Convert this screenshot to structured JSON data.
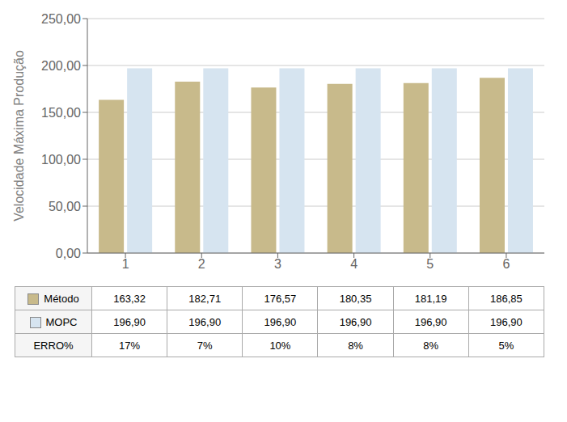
{
  "chart_data": {
    "type": "bar",
    "y_label": "Velocidade Máxima Produção",
    "categories": [
      "1",
      "2",
      "3",
      "4",
      "5",
      "6"
    ],
    "series": [
      {
        "name": "Método",
        "color": "#C8BA8B",
        "values": [
          163.32,
          182.71,
          176.57,
          180.35,
          181.19,
          186.85
        ],
        "value_labels": [
          "163,32",
          "182,71",
          "176,57",
          "180,35",
          "181,19",
          "186,85"
        ]
      },
      {
        "name": "MOPC",
        "color": "#D6E4F0",
        "values": [
          196.9,
          196.9,
          196.9,
          196.9,
          196.9,
          196.9
        ],
        "value_labels": [
          "196,90",
          "196,90",
          "196,90",
          "196,90",
          "196,90",
          "196,90"
        ]
      }
    ],
    "table_rows": [
      {
        "name": "ERRO%",
        "values": [
          17,
          7,
          10,
          8,
          8,
          5
        ],
        "value_labels": [
          "17%",
          "7%",
          "10%",
          "8%",
          "8%",
          "5%"
        ]
      }
    ],
    "ylim": [
      0,
      250
    ],
    "yticks": [
      {
        "value": 0,
        "label": "0,00"
      },
      {
        "value": 50,
        "label": "50,00"
      },
      {
        "value": 100,
        "label": "100,00"
      },
      {
        "value": 150,
        "label": "150,00"
      },
      {
        "value": 200,
        "label": "200,00"
      },
      {
        "value": 250,
        "label": "250,00"
      }
    ],
    "grid": true
  }
}
